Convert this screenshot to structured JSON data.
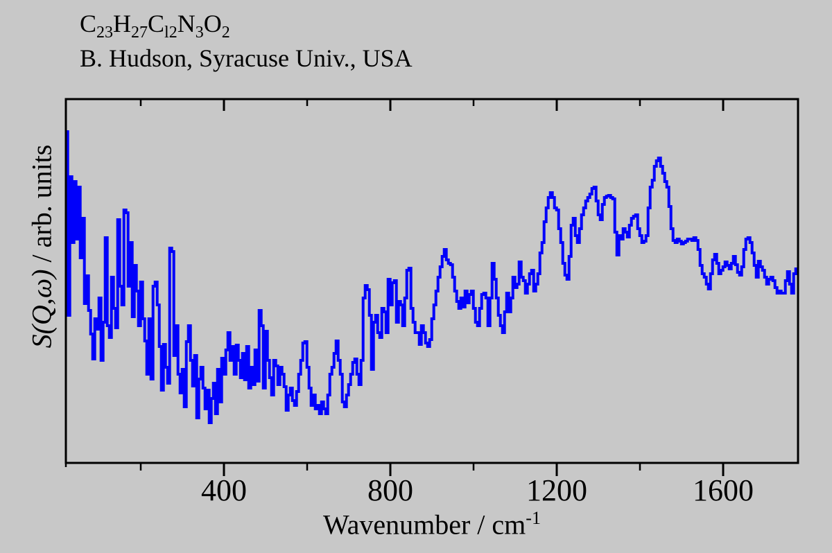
{
  "header": {
    "formula_segments": [
      {
        "symbol": "C",
        "subscript": "23"
      },
      {
        "symbol": "H",
        "subscript": "27"
      },
      {
        "symbol": "C",
        "subscript": "l2"
      },
      {
        "symbol": "N",
        "subscript": "3"
      },
      {
        "symbol": "O",
        "subscript": "2"
      }
    ],
    "credit": "B. Hudson, Syracuse Univ., USA"
  },
  "chart_data": {
    "type": "line",
    "line_style": "step-histogram",
    "series_name": "inelastic-neutron-scattering-spectrum",
    "title": "C23H27Cl2N3O2 — B. Hudson, Syracuse Univ., USA",
    "xlabel": "Wavenumber / cm",
    "xlabel_sup": "-1",
    "ylabel_italic": "S(Q,ω)",
    "ylabel_roman": " / arb. units",
    "xlim": [
      20,
      1780
    ],
    "ylim": [
      0,
      525
    ],
    "x_major_ticks": [
      400,
      800,
      1200,
      1600
    ],
    "x_minor_ticks": [
      200,
      600,
      1000,
      1400
    ],
    "x_edge_tick": 20,
    "grid": "off",
    "legend": "none",
    "line_color": "#0000FA",
    "frame_color": "#000000",
    "background_color": "#C8C8C8",
    "x_start": 22,
    "x_step": 5,
    "intensities": [
      478,
      213,
      413,
      318,
      406,
      323,
      398,
      296,
      353,
      230,
      270,
      220,
      186,
      150,
      208,
      193,
      238,
      148,
      203,
      325,
      198,
      181,
      268,
      223,
      195,
      351,
      255,
      228,
      365,
      361,
      255,
      318,
      211,
      285,
      248,
      198,
      261,
      208,
      176,
      128,
      208,
      121,
      255,
      261,
      228,
      168,
      105,
      171,
      138,
      115,
      310,
      305,
      155,
      198,
      128,
      101,
      135,
      81,
      175,
      198,
      148,
      111,
      155,
      65,
      121,
      138,
      108,
      78,
      105,
      58,
      93,
      115,
      71,
      135,
      88,
      151,
      128,
      163,
      188,
      148,
      168,
      128,
      170,
      148,
      123,
      158,
      120,
      168,
      108,
      138,
      113,
      163,
      118,
      220,
      198,
      108,
      190,
      148,
      123,
      98,
      148,
      140,
      113,
      138,
      128,
      110,
      76,
      98,
      108,
      90,
      83,
      103,
      128,
      148,
      173,
      175,
      138,
      108,
      83,
      98,
      78,
      83,
      71,
      88,
      78,
      71,
      98,
      128,
      138,
      158,
      176,
      148,
      128,
      88,
      81,
      98,
      113,
      128,
      145,
      150,
      128,
      113,
      148,
      238,
      256,
      250,
      213,
      135,
      203,
      213,
      188,
      181,
      223,
      218,
      188,
      265,
      228,
      260,
      263,
      203,
      233,
      228,
      198,
      238,
      278,
      281,
      223,
      203,
      188,
      188,
      171,
      198,
      188,
      173,
      168,
      178,
      208,
      228,
      248,
      268,
      283,
      298,
      308,
      293,
      288,
      286,
      268,
      248,
      233,
      223,
      238,
      225,
      248,
      231,
      243,
      248,
      223,
      203,
      198,
      223,
      243,
      245,
      238,
      198,
      238,
      288,
      265,
      238,
      213,
      198,
      188,
      218,
      245,
      218,
      238,
      268,
      253,
      258,
      290,
      268,
      263,
      245,
      258,
      273,
      278,
      248,
      258,
      273,
      303,
      318,
      348,
      368,
      383,
      390,
      383,
      368,
      365,
      338,
      318,
      288,
      271,
      265,
      298,
      343,
      353,
      328,
      318,
      338,
      358,
      368,
      378,
      383,
      388,
      396,
      398,
      378,
      358,
      351,
      373,
      383,
      385,
      386,
      383,
      381,
      333,
      300,
      328,
      323,
      338,
      333,
      326,
      343,
      353,
      356,
      358,
      338,
      328,
      318,
      320,
      328,
      368,
      398,
      408,
      428,
      436,
      440,
      428,
      418,
      406,
      398,
      370,
      338,
      321,
      318,
      323,
      320,
      316,
      318,
      320,
      323,
      323,
      321,
      325,
      321,
      308,
      285,
      273,
      268,
      258,
      251,
      273,
      293,
      301,
      288,
      273,
      278,
      283,
      290,
      285,
      280,
      288,
      298,
      286,
      275,
      271,
      283,
      308,
      323,
      325,
      318,
      303,
      285,
      268,
      291,
      283,
      278,
      268,
      258,
      265,
      268,
      263,
      253,
      245,
      248,
      245,
      245,
      263,
      276,
      258,
      245,
      273,
      280
    ]
  },
  "layout_note": "single framed spectrum panel on gray canvas"
}
